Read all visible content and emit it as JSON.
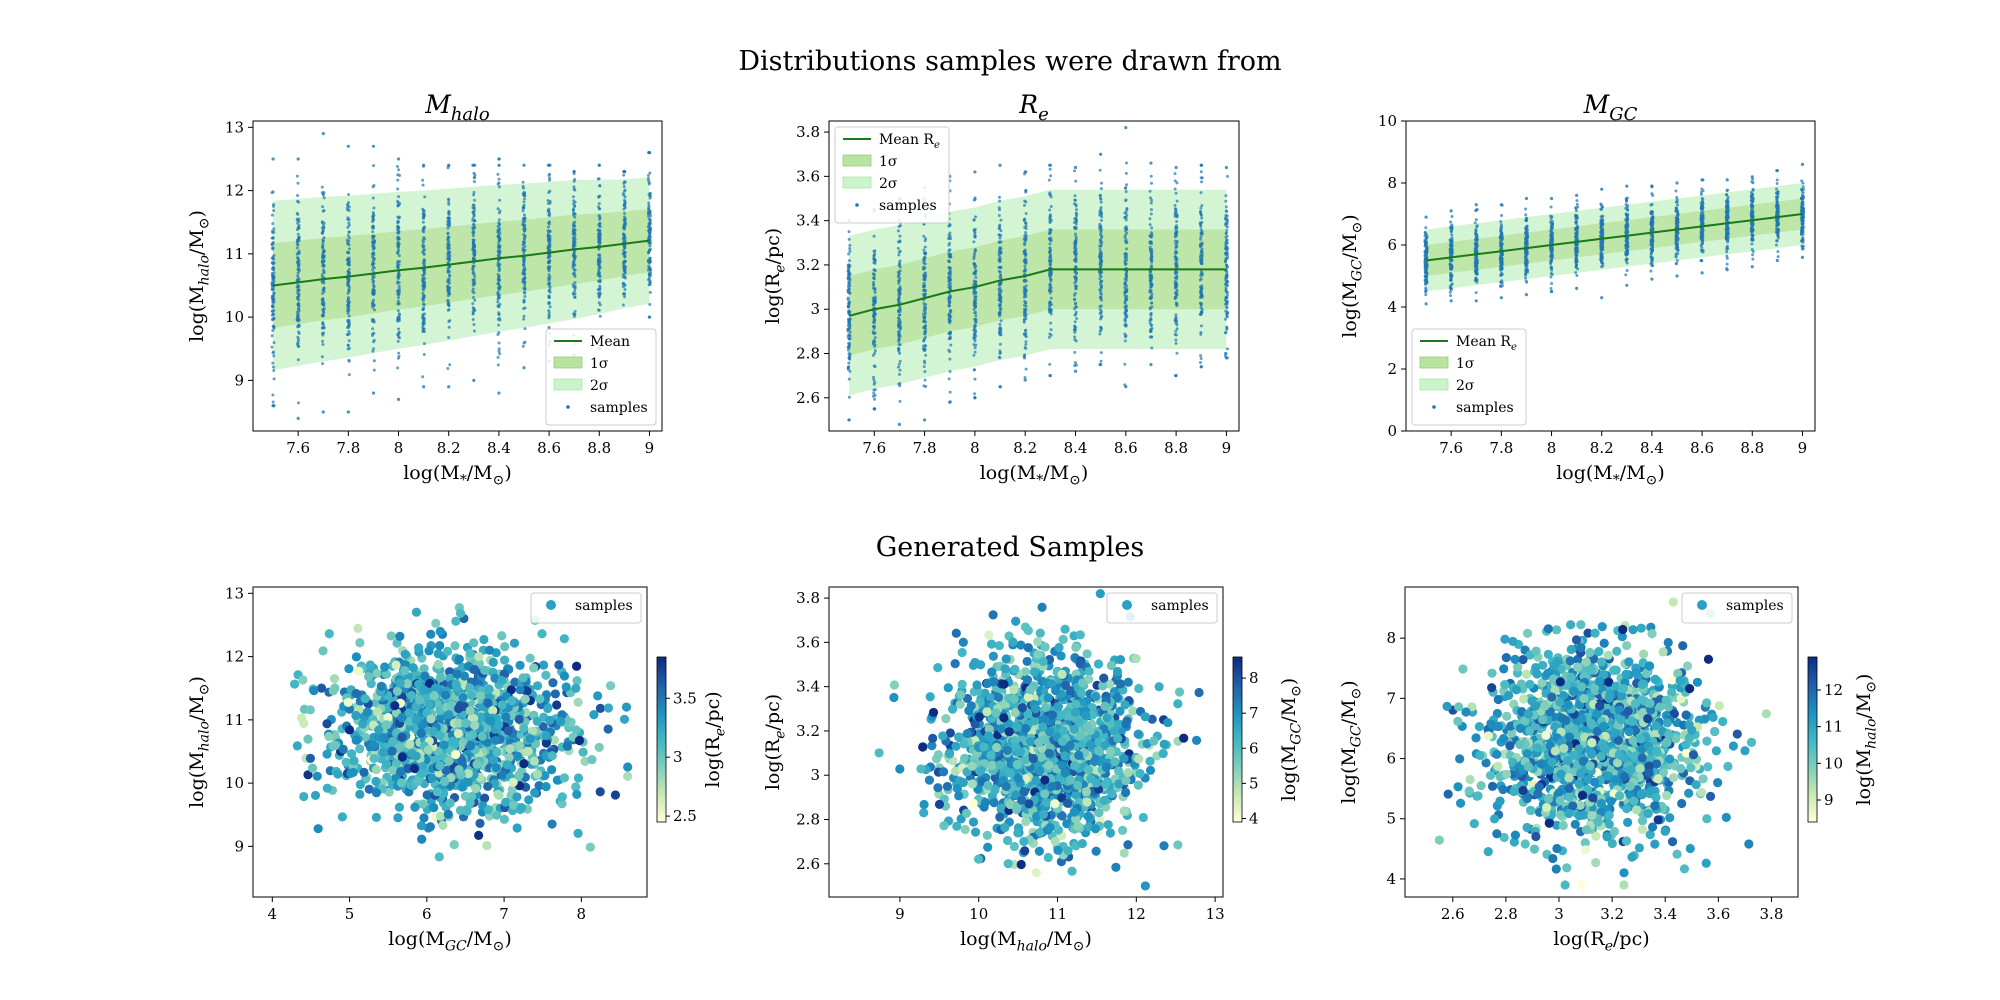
{
  "figure": {
    "top_title": "Distributions samples were drawn from",
    "bottom_title": "Generated Samples"
  },
  "colors": {
    "mean_line": "#1a7a1a",
    "band_1sigma": "#b8e3a0",
    "band_2sigma": "#cdf3cd",
    "samples": "#1f77b4",
    "colormap": [
      "#ffffd9",
      "#c7e9b4",
      "#7fcdbb",
      "#41b6c4",
      "#1d91c0",
      "#225ea8",
      "#0c2c84"
    ]
  },
  "chart_data": [
    {
      "id": "top-mhalo",
      "type": "line",
      "title": "M_{halo}",
      "xlabel": "log(M_*/M_⊙)",
      "ylabel": "log(M_{halo}/M_⊙)",
      "xlim": [
        7.42,
        9.05
      ],
      "ylim": [
        8.2,
        13.1
      ],
      "xticks": [
        7.6,
        7.8,
        8.0,
        8.2,
        8.4,
        8.6,
        8.8,
        9.0
      ],
      "yticks": [
        9,
        10,
        11,
        12,
        13
      ],
      "x": [
        7.5,
        7.6,
        7.7,
        7.8,
        7.9,
        8.0,
        8.1,
        8.2,
        8.3,
        8.4,
        8.5,
        8.6,
        8.7,
        8.8,
        8.9,
        9.0
      ],
      "mean": [
        10.5,
        10.55,
        10.6,
        10.64,
        10.69,
        10.74,
        10.78,
        10.83,
        10.88,
        10.93,
        10.97,
        11.02,
        11.07,
        11.11,
        11.16,
        11.21
      ],
      "sigma": [
        0.67,
        0.66,
        0.65,
        0.64,
        0.63,
        0.62,
        0.61,
        0.6,
        0.59,
        0.58,
        0.57,
        0.56,
        0.55,
        0.53,
        0.51,
        0.5
      ],
      "sample_min": [
        8.6,
        8.4,
        8.5,
        8.5,
        8.8,
        8.7,
        8.9,
        8.9,
        9.0,
        8.8,
        9.2,
        9.3,
        9.4,
        9.5,
        9.6,
        10.0
      ],
      "sample_max": [
        12.5,
        12.5,
        12.9,
        12.7,
        12.7,
        12.5,
        12.4,
        12.4,
        12.4,
        12.5,
        12.4,
        12.4,
        12.3,
        12.4,
        12.3,
        12.6
      ],
      "legend": {
        "position": "lower right",
        "entries": [
          "Mean",
          "1σ",
          "2σ",
          "samples"
        ]
      }
    },
    {
      "id": "top-re",
      "type": "line",
      "title": "R_e",
      "xlabel": "log(M_*/M_⊙)",
      "ylabel": "log(R_e/pc)",
      "xlim": [
        7.42,
        9.05
      ],
      "ylim": [
        2.45,
        3.85
      ],
      "xticks": [
        7.6,
        7.8,
        8.0,
        8.2,
        8.4,
        8.6,
        8.8,
        9.0
      ],
      "yticks": [
        2.6,
        2.8,
        3.0,
        3.2,
        3.4,
        3.6,
        3.8
      ],
      "x": [
        7.5,
        7.6,
        7.7,
        7.8,
        7.9,
        8.0,
        8.1,
        8.2,
        8.3,
        8.4,
        8.5,
        8.6,
        8.7,
        8.8,
        8.9,
        9.0
      ],
      "mean": [
        2.97,
        3.0,
        3.02,
        3.05,
        3.08,
        3.1,
        3.13,
        3.15,
        3.18,
        3.18,
        3.18,
        3.18,
        3.18,
        3.18,
        3.18,
        3.18
      ],
      "sigma": [
        0.18,
        0.18,
        0.18,
        0.18,
        0.18,
        0.18,
        0.18,
        0.18,
        0.18,
        0.18,
        0.18,
        0.18,
        0.18,
        0.18,
        0.18,
        0.18
      ],
      "sample_min": [
        2.5,
        2.55,
        2.48,
        2.5,
        2.58,
        2.6,
        2.65,
        2.68,
        2.7,
        2.72,
        2.75,
        2.65,
        2.75,
        2.7,
        2.74,
        2.78
      ],
      "sample_max": [
        3.4,
        3.45,
        3.5,
        3.55,
        3.6,
        3.62,
        3.65,
        3.62,
        3.65,
        3.64,
        3.7,
        3.82,
        3.66,
        3.64,
        3.65,
        3.64
      ],
      "legend": {
        "position": "upper left",
        "entries": [
          "Mean R_e",
          "1σ",
          "2σ",
          "samples"
        ]
      }
    },
    {
      "id": "top-mgc",
      "type": "line",
      "title": "M_{GC}",
      "xlabel": "log(M_*/M_⊙)",
      "ylabel": "log(M_{GC}/M_⊙)",
      "xlim": [
        7.42,
        9.05
      ],
      "ylim": [
        0,
        10
      ],
      "xticks": [
        7.6,
        7.8,
        8.0,
        8.2,
        8.4,
        8.6,
        8.8,
        9.0
      ],
      "yticks": [
        0,
        2,
        4,
        6,
        8,
        10
      ],
      "x": [
        7.5,
        7.6,
        7.7,
        7.8,
        7.9,
        8.0,
        8.1,
        8.2,
        8.3,
        8.4,
        8.5,
        8.6,
        8.7,
        8.8,
        8.9,
        9.0
      ],
      "mean": [
        5.5,
        5.6,
        5.7,
        5.8,
        5.9,
        6.0,
        6.1,
        6.2,
        6.3,
        6.4,
        6.5,
        6.6,
        6.7,
        6.8,
        6.9,
        7.0
      ],
      "sigma": [
        0.5,
        0.5,
        0.5,
        0.5,
        0.5,
        0.5,
        0.5,
        0.5,
        0.5,
        0.5,
        0.5,
        0.5,
        0.5,
        0.5,
        0.5,
        0.5
      ],
      "sample_min": [
        4.1,
        4.2,
        4.2,
        4.3,
        4.4,
        4.5,
        4.6,
        4.3,
        4.7,
        4.9,
        5.0,
        5.1,
        5.2,
        5.3,
        5.5,
        5.6
      ],
      "sample_max": [
        6.9,
        7.1,
        7.3,
        7.3,
        7.5,
        7.5,
        7.6,
        7.8,
        7.9,
        7.9,
        8.0,
        8.1,
        8.1,
        8.2,
        8.4,
        8.6
      ],
      "legend": {
        "position": "lower left",
        "entries": [
          "Mean R_e",
          "1σ",
          "2σ",
          "samples"
        ]
      }
    },
    {
      "id": "bottom-mgc-mhalo",
      "type": "scatter",
      "xlabel": "log(M_{GC}/M_⊙)",
      "ylabel": "log(M_{halo}/M_⊙)",
      "xlim": [
        3.75,
        8.85
      ],
      "ylim": [
        8.2,
        13.1
      ],
      "xticks": [
        4,
        5,
        6,
        7,
        8
      ],
      "yticks": [
        9,
        10,
        11,
        12,
        13
      ],
      "cloud": {
        "x_mean": 6.3,
        "x_sd": 0.75,
        "y_mean": 10.85,
        "y_sd": 0.62,
        "x_range": [
          3.9,
          8.6
        ],
        "y_range": [
          8.4,
          12.9
        ]
      },
      "colorbar": {
        "label": "log(R_e/pc)",
        "range": [
          2.45,
          3.85
        ],
        "ticks": [
          2.5,
          3.0,
          3.5
        ]
      },
      "legend": {
        "position": "upper right",
        "entries": [
          "samples"
        ]
      }
    },
    {
      "id": "bottom-mhalo-re",
      "type": "scatter",
      "xlabel": "log(M_{halo}/M_⊙)",
      "ylabel": "log(R_e/pc)",
      "xlim": [
        8.1,
        13.1
      ],
      "ylim": [
        2.45,
        3.85
      ],
      "xticks": [
        9,
        10,
        11,
        12,
        13
      ],
      "yticks": [
        2.6,
        2.8,
        3.0,
        3.2,
        3.4,
        3.6,
        3.8
      ],
      "cloud": {
        "x_mean": 10.85,
        "x_sd": 0.62,
        "y_mean": 3.12,
        "y_sd": 0.2,
        "x_range": [
          8.4,
          12.9
        ],
        "y_range": [
          2.5,
          3.82
        ]
      },
      "colorbar": {
        "label": "log(M_{GC}/M_⊙)",
        "range": [
          3.9,
          8.6
        ],
        "ticks": [
          4,
          5,
          6,
          7,
          8
        ]
      },
      "legend": {
        "position": "upper right",
        "entries": [
          "samples"
        ]
      }
    },
    {
      "id": "bottom-re-mgc",
      "type": "scatter",
      "xlabel": "log(R_e/pc)",
      "ylabel": "log(M_{GC}/M_⊙)",
      "xlim": [
        2.42,
        3.9
      ],
      "ylim": [
        3.7,
        8.85
      ],
      "xticks": [
        2.6,
        2.8,
        3.0,
        3.2,
        3.4,
        3.6,
        3.8
      ],
      "yticks": [
        4,
        5,
        6,
        7,
        8
      ],
      "cloud": {
        "x_mean": 3.12,
        "x_sd": 0.2,
        "y_mean": 6.3,
        "y_sd": 0.75,
        "x_range": [
          2.5,
          3.82
        ],
        "y_range": [
          3.9,
          8.6
        ]
      },
      "colorbar": {
        "label": "log(M_{halo}/M_⊙)",
        "range": [
          8.4,
          12.9
        ],
        "ticks": [
          9,
          10,
          11,
          12
        ]
      },
      "legend": {
        "position": "upper right",
        "entries": [
          "samples"
        ]
      }
    }
  ]
}
